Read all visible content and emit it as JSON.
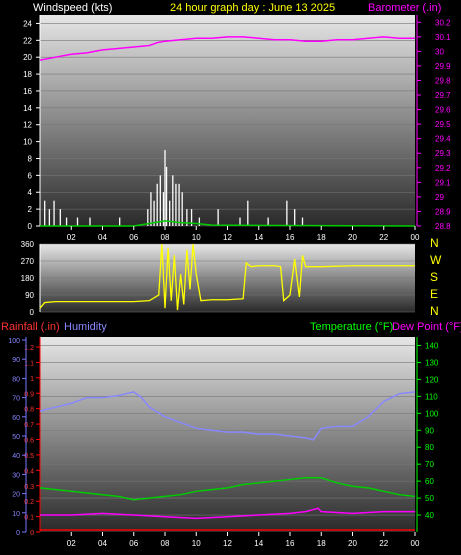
{
  "header": {
    "wind_label": "Windspeed (kts)",
    "title": "24 hour graph day : June 13 2025",
    "baro_label": "Barometer (.in)"
  },
  "colors": {
    "white": "#ffffff",
    "yellow": "#ffff00",
    "magenta": "#ff00ff",
    "green": "#00ff00",
    "red": "#ff0000",
    "blue": "#7777ff",
    "humidity": "#8888ff",
    "dewpoint": "#ff00ff",
    "temperature": "#00cc00"
  },
  "chart_data": [
    {
      "type": "line",
      "name": "wind-barometer",
      "x_ticks": [
        "02",
        "04",
        "06",
        "08",
        "10",
        "12",
        "14",
        "16",
        "18",
        "20",
        "22",
        "00"
      ],
      "y_left_ticks": [
        "0",
        "2",
        "4",
        "6",
        "8",
        "10",
        "12",
        "14",
        "16",
        "18",
        "20",
        "22",
        "24"
      ],
      "y_left_range": [
        0,
        25
      ],
      "y_right_ticks": [
        "28.8",
        "28.9",
        "29",
        "29.1",
        "29.2",
        "29.3",
        "29.4",
        "29.5",
        "29.6",
        "29.7",
        "29.8",
        "29.9",
        "30",
        "30.1",
        "30.2"
      ],
      "y_right_range": [
        28.8,
        30.25
      ],
      "barometer": {
        "x": [
          0,
          1,
          2,
          3,
          4,
          5,
          6,
          7,
          7.5,
          8,
          9,
          10,
          11,
          12,
          13,
          14,
          15,
          16,
          17,
          18,
          19,
          20,
          21,
          22,
          23,
          24
        ],
        "y": [
          29.94,
          29.96,
          29.98,
          29.99,
          30.01,
          30.02,
          30.03,
          30.04,
          30.06,
          30.07,
          30.08,
          30.09,
          30.09,
          30.1,
          30.1,
          30.09,
          30.08,
          30.08,
          30.07,
          30.07,
          30.08,
          30.08,
          30.09,
          30.1,
          30.09,
          30.09
        ]
      },
      "wind_gusts": {
        "x": [
          0.3,
          0.6,
          0.9,
          1.3,
          1.7,
          2.4,
          3.2,
          5.1,
          6.9,
          7.1,
          7.3,
          7.5,
          7.7,
          7.9,
          8.0,
          8.1,
          8.3,
          8.5,
          8.7,
          8.9,
          9.1,
          9.4,
          9.7,
          10.2,
          11.4,
          12.8,
          13.3,
          14.6,
          15.8,
          16.3,
          16.8
        ],
        "y": [
          3,
          2,
          3,
          2,
          1,
          1,
          1,
          1,
          2,
          4,
          3,
          5,
          6,
          4,
          9,
          7,
          3,
          6,
          5,
          5,
          4,
          2,
          2,
          1,
          2,
          1,
          3,
          1,
          3,
          2,
          1
        ]
      },
      "wind_avg": {
        "x": [
          0,
          6,
          7,
          8,
          9,
          10,
          11,
          24
        ],
        "y": [
          0,
          0,
          0.3,
          0.6,
          0.4,
          0.3,
          0.1,
          0
        ]
      }
    },
    {
      "type": "line",
      "name": "wind-direction",
      "y_left_ticks": [
        "0",
        "90",
        "180",
        "270",
        "360"
      ],
      "y_range": [
        0,
        360
      ],
      "y_right_labels": [
        "N",
        "W",
        "S",
        "E",
        "N"
      ],
      "x": [
        0,
        0.3,
        1,
        3,
        5,
        6,
        7,
        7.6,
        7.8,
        8.0,
        8.2,
        8.4,
        8.6,
        8.8,
        9.0,
        9.2,
        9.4,
        9.6,
        9.8,
        10,
        10.3,
        11,
        12,
        13,
        13.2,
        13.5,
        14,
        15,
        15.4,
        15.6,
        16,
        16.3,
        16.6,
        16.8,
        17,
        18,
        20,
        22,
        24
      ],
      "y": [
        20,
        50,
        55,
        55,
        55,
        55,
        60,
        90,
        360,
        20,
        340,
        60,
        300,
        10,
        200,
        40,
        330,
        120,
        360,
        200,
        60,
        65,
        65,
        70,
        260,
        240,
        245,
        245,
        240,
        60,
        90,
        280,
        80,
        300,
        240,
        240,
        245,
        245,
        245
      ]
    },
    {
      "type": "line",
      "name": "temp-humidity-rain",
      "y_left_ticks": [
        "0",
        "0.1",
        "0.2",
        "0.3",
        "0.4",
        "0.5",
        "0.6",
        "0.7",
        "0.8",
        "0.9",
        "1",
        "1.1",
        "1.2"
      ],
      "y_humidity_ticks": [
        "0",
        "10",
        "20",
        "30",
        "40",
        "50",
        "60",
        "70",
        "80",
        "90",
        "100"
      ],
      "y_right_ticks": [
        "40",
        "50",
        "60",
        "70",
        "80",
        "90",
        "100",
        "110",
        "120",
        "130",
        "140"
      ],
      "y_right_range": [
        30,
        145
      ],
      "labels": {
        "rainfall": "Rainfall (.in)",
        "humidity": "Humidity",
        "temperature": "Temperature (°F)",
        "dewpoint": "Dew Point (°F)"
      },
      "humidity": {
        "x": [
          0,
          1,
          2,
          3,
          4,
          5,
          6,
          6.5,
          7,
          8,
          9,
          10,
          11,
          12,
          13,
          14,
          15,
          16,
          17,
          17.5,
          18,
          19,
          20,
          21,
          22,
          23,
          24
        ],
        "y": [
          63,
          65,
          67,
          70,
          70,
          71,
          73,
          70,
          65,
          60,
          57,
          54,
          53,
          52,
          52,
          51,
          51,
          50,
          49,
          48,
          54,
          55,
          55,
          60,
          68,
          72,
          73
        ]
      },
      "temperature": {
        "x": [
          0,
          1,
          2,
          3,
          4,
          5,
          6,
          7,
          8,
          9,
          10,
          11,
          12,
          13,
          14,
          15,
          16,
          17,
          18,
          19,
          20,
          21,
          22,
          23,
          24
        ],
        "y": [
          56,
          55,
          54,
          53,
          52,
          51,
          49,
          50,
          51,
          52,
          54,
          55,
          56,
          58,
          59,
          60,
          61,
          62,
          62,
          59,
          57,
          56,
          54,
          52,
          51
        ]
      },
      "dewpoint": {
        "x": [
          0,
          2,
          4,
          6,
          8,
          10,
          12,
          14,
          16,
          17,
          17.8,
          18,
          20,
          22,
          24
        ],
        "y": [
          40,
          40,
          41,
          40,
          39,
          38,
          39,
          40,
          41,
          42,
          44,
          42,
          41,
          42,
          42
        ]
      },
      "rainfall": {
        "x": [
          0,
          5,
          5.05,
          24
        ],
        "y": [
          0,
          0,
          0,
          0
        ]
      }
    }
  ]
}
